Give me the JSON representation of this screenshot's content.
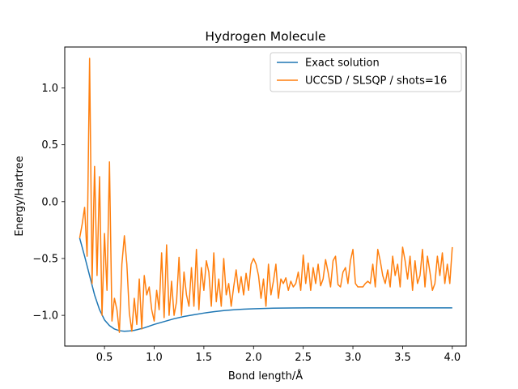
{
  "chart_data": {
    "type": "line",
    "title": "Hydrogen Molecule",
    "xlabel": "Bond length/Å",
    "ylabel": "Energy/Hartree",
    "xlim": [
      0.1,
      4.14
    ],
    "ylim": [
      -1.27,
      1.36
    ],
    "xticks": [
      0.5,
      1.0,
      1.5,
      2.0,
      2.5,
      3.0,
      3.5,
      4.0
    ],
    "xtick_labels": [
      "0.5",
      "1.0",
      "1.5",
      "2.0",
      "2.5",
      "3.0",
      "3.5",
      "4.0"
    ],
    "yticks": [
      -1.0,
      -0.5,
      0.0,
      0.5,
      1.0
    ],
    "ytick_labels": [
      "−1.0",
      "−0.5",
      "0.0",
      "0.5",
      "1.0"
    ],
    "legend_position": "upper right",
    "grid": false,
    "series": [
      {
        "name": "Exact solution",
        "color": "#1f77b4",
        "x": [
          0.25,
          0.3,
          0.35,
          0.4,
          0.45,
          0.5,
          0.55,
          0.6,
          0.65,
          0.7,
          0.75,
          0.8,
          0.9,
          1.0,
          1.1,
          1.2,
          1.3,
          1.4,
          1.5,
          1.6,
          1.7,
          1.8,
          1.9,
          2.0,
          2.2,
          2.4,
          2.6,
          2.8,
          3.0,
          3.2,
          3.4,
          3.6,
          3.8,
          4.0
        ],
        "y": [
          -0.32,
          -0.48,
          -0.65,
          -0.82,
          -0.95,
          -1.04,
          -1.09,
          -1.12,
          -1.135,
          -1.14,
          -1.137,
          -1.132,
          -1.11,
          -1.08,
          -1.055,
          -1.03,
          -1.01,
          -0.995,
          -0.98,
          -0.968,
          -0.958,
          -0.951,
          -0.946,
          -0.942,
          -0.937,
          -0.935,
          -0.934,
          -0.934,
          -0.934,
          -0.934,
          -0.934,
          -0.934,
          -0.934,
          -0.934
        ]
      },
      {
        "name": "UCCSD / SLSQP / shots=16",
        "color": "#ff7f0e",
        "x": [
          0.25,
          0.275,
          0.3,
          0.325,
          0.35,
          0.375,
          0.4,
          0.425,
          0.45,
          0.475,
          0.5,
          0.525,
          0.55,
          0.575,
          0.6,
          0.625,
          0.65,
          0.675,
          0.7,
          0.725,
          0.75,
          0.775,
          0.8,
          0.825,
          0.85,
          0.875,
          0.9,
          0.925,
          0.95,
          0.975,
          1.0,
          1.025,
          1.05,
          1.075,
          1.1,
          1.125,
          1.15,
          1.175,
          1.2,
          1.225,
          1.25,
          1.275,
          1.3,
          1.325,
          1.35,
          1.375,
          1.4,
          1.425,
          1.45,
          1.475,
          1.5,
          1.525,
          1.55,
          1.575,
          1.6,
          1.625,
          1.65,
          1.675,
          1.7,
          1.725,
          1.75,
          1.775,
          1.8,
          1.825,
          1.85,
          1.875,
          1.9,
          1.925,
          1.95,
          1.975,
          2.0,
          2.025,
          2.05,
          2.075,
          2.1,
          2.125,
          2.15,
          2.175,
          2.2,
          2.225,
          2.25,
          2.275,
          2.3,
          2.325,
          2.35,
          2.375,
          2.4,
          2.425,
          2.45,
          2.475,
          2.5,
          2.525,
          2.55,
          2.575,
          2.6,
          2.625,
          2.65,
          2.675,
          2.7,
          2.725,
          2.75,
          2.775,
          2.8,
          2.825,
          2.85,
          2.875,
          2.9,
          2.925,
          2.95,
          2.975,
          3.0,
          3.025,
          3.05,
          3.075,
          3.1,
          3.125,
          3.15,
          3.175,
          3.2,
          3.225,
          3.25,
          3.275,
          3.3,
          3.325,
          3.35,
          3.375,
          3.4,
          3.425,
          3.45,
          3.475,
          3.5,
          3.525,
          3.55,
          3.575,
          3.6,
          3.625,
          3.65,
          3.675,
          3.7,
          3.725,
          3.75,
          3.775,
          3.8,
          3.825,
          3.85,
          3.875,
          3.9,
          3.925,
          3.95,
          3.975,
          4.0
        ],
        "y": [
          -0.32,
          -0.2,
          -0.05,
          -0.48,
          1.26,
          -0.72,
          0.31,
          -0.65,
          0.22,
          -1.0,
          -0.28,
          -0.78,
          0.35,
          -1.05,
          -0.85,
          -0.95,
          -1.15,
          -0.55,
          -0.3,
          -0.55,
          -0.98,
          -1.14,
          -0.85,
          -1.08,
          -0.68,
          -1.12,
          -0.65,
          -0.82,
          -0.75,
          -0.95,
          -1.05,
          -0.78,
          -0.95,
          -0.45,
          -1.02,
          -0.38,
          -1.0,
          -0.7,
          -1.0,
          -0.88,
          -0.49,
          -1.0,
          -0.62,
          -0.82,
          -0.92,
          -0.58,
          -0.92,
          -0.42,
          -0.95,
          -0.58,
          -0.78,
          -0.52,
          -0.62,
          -0.92,
          -0.45,
          -0.88,
          -0.68,
          -0.92,
          -0.5,
          -0.82,
          -0.72,
          -0.92,
          -0.75,
          -0.6,
          -0.8,
          -0.66,
          -0.82,
          -0.63,
          -0.78,
          -0.55,
          -0.5,
          -0.55,
          -0.65,
          -0.85,
          -0.68,
          -0.92,
          -0.55,
          -0.82,
          -0.7,
          -0.55,
          -0.85,
          -0.68,
          -0.72,
          -0.67,
          -0.78,
          -0.7,
          -0.75,
          -0.72,
          -0.62,
          -0.78,
          -0.47,
          -0.72,
          -0.54,
          -0.78,
          -0.58,
          -0.72,
          -0.55,
          -0.74,
          -0.68,
          -0.51,
          -0.62,
          -0.75,
          -0.52,
          -0.48,
          -0.73,
          -0.75,
          -0.62,
          -0.58,
          -0.72,
          -0.52,
          -0.42,
          -0.72,
          -0.75,
          -0.75,
          -0.75,
          -0.72,
          -0.7,
          -0.72,
          -0.55,
          -0.75,
          -0.42,
          -0.52,
          -0.65,
          -0.72,
          -0.6,
          -0.75,
          -0.48,
          -0.65,
          -0.55,
          -0.75,
          -0.4,
          -0.52,
          -0.68,
          -0.48,
          -0.78,
          -0.52,
          -0.72,
          -0.65,
          -0.42,
          -0.75,
          -0.48,
          -0.62,
          -0.78,
          -0.72,
          -0.48,
          -0.65,
          -0.45,
          -0.72,
          -0.55,
          -0.72,
          -0.4
        ]
      }
    ]
  }
}
